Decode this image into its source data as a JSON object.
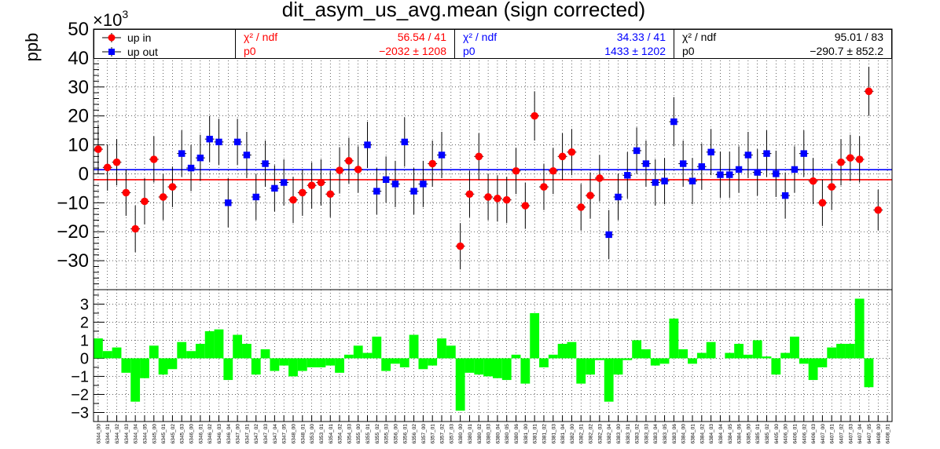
{
  "title": "dit_asym_us_avg.mean (sign corrected)",
  "exponent_label": "×10",
  "exponent_power": "3",
  "colors": {
    "up_in": "#ff0000",
    "up_out": "#0000ff",
    "combined": "#000000",
    "ratio_bars": "#00ff00"
  },
  "legend": [
    {
      "label": "up in",
      "marker": "circle",
      "color": "#ff0000"
    },
    {
      "label": "up out",
      "marker": "square",
      "color": "#0000ff"
    }
  ],
  "fit_boxes": [
    {
      "name": "up_in",
      "color": "#ff0000",
      "chi_label": "χ² / ndf",
      "chi_value": "56.54 / 41",
      "p0_label": "p0",
      "p0_value": "−2032 ±  1208"
    },
    {
      "name": "up_out",
      "color": "#0000ff",
      "chi_label": "χ² / ndf",
      "chi_value": "34.33 / 41",
      "p0_label": "p0",
      "p0_value": "1433 ±  1202"
    },
    {
      "name": "combined",
      "color": "#000000",
      "chi_label": "χ² / ndf",
      "chi_value": "95.01 / 83",
      "p0_label": "p0",
      "p0_value": "−290.7 ± 852.2"
    }
  ],
  "chart_data": [
    {
      "type": "scatter",
      "ylabel": "ppb",
      "ylim": [
        -40,
        50
      ],
      "yticks": [
        -30,
        -20,
        -10,
        0,
        10,
        20,
        30,
        40,
        50
      ],
      "grid": true,
      "fits": [
        {
          "series": "up in",
          "value": -2.032,
          "color": "#ff0000"
        },
        {
          "series": "up out",
          "value": 1.433,
          "color": "#0000ff"
        }
      ],
      "categories": [
        "6344_00",
        "6344_01",
        "6344_02",
        "6344_03",
        "6344_04",
        "6344_05",
        "6345_00",
        "6345_01",
        "6345_02",
        "6345_03",
        "6346_00",
        "6346_01",
        "6346_02",
        "6346_03",
        "6346_04",
        "6347_00",
        "6347_01",
        "6347_02",
        "6347_03",
        "6347_04",
        "6347_05",
        "6348_00",
        "6348_01",
        "6353_00",
        "6353_01",
        "6354_01",
        "6354_02",
        "6354_03",
        "6355_00",
        "6355_01",
        "6355_02",
        "6355_03",
        "6356_00",
        "6356_01",
        "6356_02",
        "6357_00",
        "6357_01",
        "6357_02",
        "6357_03",
        "6380_00",
        "6380_01",
        "6380_02",
        "6380_03",
        "6380_04",
        "6380_05",
        "6380_06",
        "6381_00",
        "6381_01",
        "6381_02",
        "6381_03",
        "6381_04",
        "6382_00",
        "6382_01",
        "6382_02",
        "6382_03",
        "6382_04",
        "6383_00",
        "6383_01",
        "6383_02",
        "6383_03",
        "6383_04",
        "6383_05",
        "6383_06",
        "6384_00",
        "6384_01",
        "6384_02",
        "6384_03",
        "6384_04",
        "6384_05",
        "6384_06",
        "6385_00",
        "6385_01",
        "6385_02",
        "6405_00",
        "6406_00",
        "6406_01",
        "6406_02",
        "6406_03",
        "6407_00",
        "6407_01",
        "6407_02",
        "6407_03",
        "6407_04",
        "6407_05",
        "6408_00",
        "6408_01"
      ],
      "series": [
        {
          "name": "up in",
          "color": "#ff0000",
          "marker": "circle",
          "points": [
            {
              "i": 0,
              "y": 8.5,
              "err": 8.5
            },
            {
              "i": 1,
              "y": 2.2,
              "err": 8
            },
            {
              "i": 2,
              "y": 4,
              "err": 8
            },
            {
              "i": 3,
              "y": -6.5,
              "err": 8
            },
            {
              "i": 4,
              "y": -19,
              "err": 8
            },
            {
              "i": 5,
              "y": -9.5,
              "err": 8
            },
            {
              "i": 6,
              "y": 5,
              "err": 8
            },
            {
              "i": 7,
              "y": -8,
              "err": 8
            },
            {
              "i": 8,
              "y": -4.5,
              "err": 7
            },
            {
              "i": 21,
              "y": -9,
              "err": 8
            },
            {
              "i": 22,
              "y": -6.5,
              "err": 8
            },
            {
              "i": 23,
              "y": -4,
              "err": 8
            },
            {
              "i": 24,
              "y": -3,
              "err": 8
            },
            {
              "i": 25,
              "y": -7,
              "err": 8
            },
            {
              "i": 26,
              "y": 1.2,
              "err": 8
            },
            {
              "i": 27,
              "y": 4.5,
              "err": 8
            },
            {
              "i": 28,
              "y": 1.5,
              "err": 8
            },
            {
              "i": 36,
              "y": 3.5,
              "err": 8
            },
            {
              "i": 39,
              "y": -25,
              "err": 8
            },
            {
              "i": 40,
              "y": -7,
              "err": 8
            },
            {
              "i": 41,
              "y": 6,
              "err": 8
            },
            {
              "i": 42,
              "y": -8,
              "err": 8
            },
            {
              "i": 43,
              "y": -8.5,
              "err": 8
            },
            {
              "i": 44,
              "y": -9,
              "err": 8
            },
            {
              "i": 45,
              "y": 1,
              "err": 8
            },
            {
              "i": 46,
              "y": -11,
              "err": 8
            },
            {
              "i": 47,
              "y": 20,
              "err": 8.5
            },
            {
              "i": 48,
              "y": -4.5,
              "err": 8
            },
            {
              "i": 49,
              "y": 1,
              "err": 8
            },
            {
              "i": 50,
              "y": 6,
              "err": 8
            },
            {
              "i": 51,
              "y": 7.5,
              "err": 8
            },
            {
              "i": 52,
              "y": -11.5,
              "err": 8
            },
            {
              "i": 53,
              "y": -7.5,
              "err": 8
            },
            {
              "i": 54,
              "y": -1.5,
              "err": 8
            },
            {
              "i": 77,
              "y": -2.5,
              "err": 8
            },
            {
              "i": 78,
              "y": -10,
              "err": 8
            },
            {
              "i": 79,
              "y": -4.5,
              "err": 8
            },
            {
              "i": 80,
              "y": 4,
              "err": 8
            },
            {
              "i": 81,
              "y": 5.5,
              "err": 8
            },
            {
              "i": 82,
              "y": 5,
              "err": 8
            },
            {
              "i": 83,
              "y": 28.5,
              "err": 8.5
            },
            {
              "i": 84,
              "y": -12.5,
              "err": 7
            }
          ]
        },
        {
          "name": "up out",
          "color": "#0000ff",
          "marker": "square",
          "points": [
            {
              "i": 9,
              "y": 7,
              "err": 8
            },
            {
              "i": 10,
              "y": 2,
              "err": 8
            },
            {
              "i": 11,
              "y": 5.5,
              "err": 8
            },
            {
              "i": 12,
              "y": 12,
              "err": 8
            },
            {
              "i": 13,
              "y": 11,
              "err": 8
            },
            {
              "i": 14,
              "y": -10,
              "err": 8.5
            },
            {
              "i": 15,
              "y": 11,
              "err": 8
            },
            {
              "i": 16,
              "y": 6.5,
              "err": 8
            },
            {
              "i": 17,
              "y": -8,
              "err": 8
            },
            {
              "i": 18,
              "y": 3.5,
              "err": 8
            },
            {
              "i": 19,
              "y": -5,
              "err": 8
            },
            {
              "i": 20,
              "y": -3,
              "err": 8
            },
            {
              "i": 29,
              "y": 10,
              "err": 8
            },
            {
              "i": 30,
              "y": -6,
              "err": 8
            },
            {
              "i": 31,
              "y": -2,
              "err": 8
            },
            {
              "i": 32,
              "y": -3.5,
              "err": 8
            },
            {
              "i": 33,
              "y": 11,
              "err": 8.5
            },
            {
              "i": 34,
              "y": -6,
              "err": 8
            },
            {
              "i": 35,
              "y": -3.5,
              "err": 8
            },
            {
              "i": 37,
              "y": 6.5,
              "err": 8
            },
            {
              "i": 55,
              "y": -21,
              "err": 8.5
            },
            {
              "i": 56,
              "y": -8,
              "err": 8
            },
            {
              "i": 57,
              "y": -0.5,
              "err": 8
            },
            {
              "i": 58,
              "y": 8,
              "err": 8
            },
            {
              "i": 59,
              "y": 3.5,
              "err": 8
            },
            {
              "i": 60,
              "y": -3,
              "err": 8
            },
            {
              "i": 61,
              "y": -2.5,
              "err": 8
            },
            {
              "i": 62,
              "y": 18,
              "err": 8.5
            },
            {
              "i": 63,
              "y": 3.5,
              "err": 8
            },
            {
              "i": 64,
              "y": -2.5,
              "err": 8
            },
            {
              "i": 65,
              "y": 2.5,
              "err": 8
            },
            {
              "i": 66,
              "y": 7.5,
              "err": 8
            },
            {
              "i": 67,
              "y": -0.3,
              "err": 8
            },
            {
              "i": 68,
              "y": -0.3,
              "err": 8
            },
            {
              "i": 69,
              "y": 1.5,
              "err": 8
            },
            {
              "i": 70,
              "y": 6.5,
              "err": 8
            },
            {
              "i": 71,
              "y": 0.5,
              "err": 8
            },
            {
              "i": 72,
              "y": 7,
              "err": 8
            },
            {
              "i": 73,
              "y": 0,
              "err": 8
            },
            {
              "i": 74,
              "y": -7.5,
              "err": 8
            },
            {
              "i": 75,
              "y": 1.5,
              "err": 8
            },
            {
              "i": 76,
              "y": 7,
              "err": 8
            }
          ]
        }
      ]
    },
    {
      "type": "bar",
      "ylim": [
        -3.5,
        3.8
      ],
      "yticks": [
        -3,
        -2,
        -1,
        0,
        1,
        2,
        3
      ],
      "grid": true,
      "color": "#00ff00",
      "values": [
        1.1,
        0.4,
        0.6,
        -0.8,
        -2.4,
        -1.1,
        0.7,
        -0.9,
        -0.6,
        0.9,
        0.4,
        0.8,
        1.5,
        1.6,
        -1.2,
        1.3,
        0.8,
        -0.9,
        0.5,
        -0.7,
        -0.4,
        -1.0,
        -0.7,
        -0.5,
        -0.5,
        -0.4,
        -0.8,
        0.2,
        0.7,
        0.3,
        1.2,
        -0.7,
        -0.3,
        -0.5,
        1.3,
        -0.6,
        -0.4,
        1.1,
        0.7,
        -2.9,
        -0.8,
        -0.9,
        -1.0,
        -1.1,
        -1.2,
        0.2,
        -1.4,
        2.5,
        -0.5,
        0.2,
        0.8,
        0.9,
        -1.4,
        -0.9,
        -0.1,
        -2.4,
        -0.9,
        -0.1,
        1.0,
        0.5,
        -0.4,
        -0.3,
        2.2,
        0.5,
        -0.3,
        0.3,
        0.9,
        0.0,
        0.3,
        0.8,
        0.2,
        1.0,
        0.1,
        -0.9,
        0.3,
        1.2,
        -0.3,
        -1.2,
        -0.5,
        0.6,
        0.8,
        0.8,
        3.3,
        -1.6,
        0.0,
        0.0
      ]
    }
  ]
}
